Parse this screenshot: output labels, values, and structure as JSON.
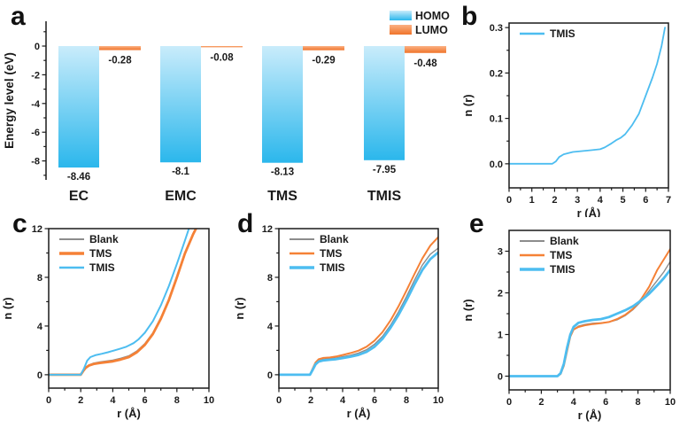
{
  "figure": {
    "background": "#ffffff",
    "panels": [
      {
        "letter": "a"
      },
      {
        "letter": "b"
      },
      {
        "letter": "c"
      },
      {
        "letter": "d"
      },
      {
        "letter": "e"
      }
    ]
  },
  "colors": {
    "text": "#1a1a1a",
    "axis": "#1a1a1a",
    "homo_gradient_top": "#c9ecfb",
    "homo_gradient_bottom": "#2bb7ec",
    "lumo_gradient_top": "#fbb183",
    "lumo_gradient_bottom": "#f0742a",
    "line_blank": "#8c8c8c",
    "line_tms": "#f58136",
    "line_tmis": "#4dbdf0"
  },
  "chart_data": [
    {
      "id": "panel-a",
      "type": "bar",
      "title": "",
      "ylabel": "Energy level (eV)",
      "ylim": [
        -9.3,
        1.4
      ],
      "yticks": [
        0,
        -2,
        -4,
        -6,
        -8
      ],
      "ytick_labels": [
        "0",
        "-2",
        "-4",
        "-6",
        "-8"
      ],
      "categories": [
        "EC",
        "EMC",
        "TMS",
        "TMIS"
      ],
      "series": [
        {
          "name": "HOMO",
          "color_top": "#c9ecfb",
          "color_bottom": "#2bb7ec",
          "values": [
            -8.46,
            -8.1,
            -8.13,
            -7.95
          ],
          "labels": [
            "-8.46",
            "-8.1",
            "-8.13",
            "-7.95"
          ]
        },
        {
          "name": "LUMO",
          "color_top": "#fbb183",
          "color_bottom": "#f0742a",
          "values": [
            -0.28,
            -0.08,
            -0.29,
            -0.48
          ],
          "labels": [
            "-0.28",
            "-0.08",
            "-0.29",
            "-0.48"
          ]
        }
      ],
      "legend": [
        "HOMO",
        "LUMO"
      ],
      "legend_position": "top-right"
    },
    {
      "id": "panel-b",
      "type": "line",
      "xlabel": "r (Å)",
      "ylabel": "n (r)",
      "xlim": [
        0,
        7
      ],
      "ylim": [
        -0.053,
        0.31
      ],
      "xticks": [
        0,
        1,
        2,
        3,
        4,
        5,
        6,
        7
      ],
      "xtick_labels": [
        "0",
        "1",
        "2",
        "3",
        "4",
        "5",
        "6",
        "7"
      ],
      "yticks": [
        0.0,
        0.1,
        0.2,
        0.3
      ],
      "ytick_labels": [
        "0.0",
        "0.1",
        "0.2",
        "0.3"
      ],
      "legend_position": "top-left",
      "series": [
        {
          "name": "TMIS",
          "color": "#4dbdf0",
          "width": 1.8,
          "points": [
            [
              0,
              0
            ],
            [
              1.9,
              0
            ],
            [
              2.05,
              0.005
            ],
            [
              2.2,
              0.015
            ],
            [
              2.4,
              0.021
            ],
            [
              2.8,
              0.026
            ],
            [
              3.2,
              0.028
            ],
            [
              3.6,
              0.03
            ],
            [
              4.0,
              0.032
            ],
            [
              4.2,
              0.036
            ],
            [
              4.5,
              0.045
            ],
            [
              4.7,
              0.052
            ],
            [
              4.9,
              0.057
            ],
            [
              5.1,
              0.065
            ],
            [
              5.4,
              0.085
            ],
            [
              5.7,
              0.11
            ],
            [
              6.0,
              0.15
            ],
            [
              6.3,
              0.19
            ],
            [
              6.5,
              0.22
            ],
            [
              6.7,
              0.26
            ],
            [
              6.85,
              0.3
            ]
          ]
        }
      ]
    },
    {
      "id": "panel-c",
      "type": "line",
      "xlabel": "r (Å)",
      "ylabel": "n (r)",
      "xlim": [
        0,
        10
      ],
      "ylim": [
        -1.1,
        12
      ],
      "xticks": [
        0,
        2,
        4,
        6,
        8,
        10
      ],
      "xtick_labels": [
        "0",
        "2",
        "4",
        "6",
        "8",
        "10"
      ],
      "yticks": [
        0,
        4,
        8,
        12
      ],
      "ytick_labels": [
        "0",
        "4",
        "8",
        "12"
      ],
      "legend_position": "top-left",
      "series": [
        {
          "name": "Blank",
          "color": "#8c8c8c",
          "width": 1.4,
          "points": [
            [
              0,
              0
            ],
            [
              2.0,
              0
            ],
            [
              2.15,
              0.35
            ],
            [
              2.3,
              0.6
            ],
            [
              2.5,
              0.8
            ],
            [
              2.8,
              0.95
            ],
            [
              3.2,
              1.05
            ],
            [
              3.6,
              1.12
            ],
            [
              4.0,
              1.2
            ],
            [
              4.5,
              1.35
            ],
            [
              5.0,
              1.55
            ],
            [
              5.5,
              1.95
            ],
            [
              6.0,
              2.55
            ],
            [
              6.5,
              3.45
            ],
            [
              7.0,
              4.7
            ],
            [
              7.5,
              6.2
            ],
            [
              8.0,
              8.0
            ],
            [
              8.5,
              9.9
            ],
            [
              9.0,
              11.6
            ],
            [
              9.3,
              12.4
            ]
          ]
        },
        {
          "name": "TMS",
          "color": "#f58136",
          "width": 2.8,
          "points": [
            [
              0,
              0
            ],
            [
              2.0,
              0
            ],
            [
              2.15,
              0.3
            ],
            [
              2.3,
              0.55
            ],
            [
              2.5,
              0.75
            ],
            [
              2.8,
              0.88
            ],
            [
              3.2,
              0.97
            ],
            [
              3.6,
              1.03
            ],
            [
              4.0,
              1.1
            ],
            [
              4.5,
              1.25
            ],
            [
              5.0,
              1.45
            ],
            [
              5.5,
              1.85
            ],
            [
              6.0,
              2.45
            ],
            [
              6.5,
              3.35
            ],
            [
              7.0,
              4.6
            ],
            [
              7.5,
              6.15
            ],
            [
              8.0,
              8.0
            ],
            [
              8.5,
              9.95
            ],
            [
              9.0,
              11.5
            ],
            [
              9.35,
              12.4
            ]
          ]
        },
        {
          "name": "TMIS",
          "color": "#4dbdf0",
          "width": 2.0,
          "points": [
            [
              0,
              0
            ],
            [
              2.0,
              0
            ],
            [
              2.2,
              0.5
            ],
            [
              2.4,
              1.15
            ],
            [
              2.6,
              1.45
            ],
            [
              2.9,
              1.6
            ],
            [
              3.3,
              1.72
            ],
            [
              3.7,
              1.85
            ],
            [
              4.1,
              2.0
            ],
            [
              4.5,
              2.15
            ],
            [
              4.8,
              2.28
            ],
            [
              5.0,
              2.4
            ],
            [
              5.3,
              2.6
            ],
            [
              5.6,
              2.9
            ],
            [
              6.0,
              3.45
            ],
            [
              6.5,
              4.4
            ],
            [
              7.0,
              5.7
            ],
            [
              7.5,
              7.3
            ],
            [
              8.0,
              9.1
            ],
            [
              8.5,
              11.0
            ],
            [
              8.85,
              12.4
            ]
          ]
        }
      ]
    },
    {
      "id": "panel-d",
      "type": "line",
      "xlabel": "r (Å)",
      "ylabel": "n (r)",
      "xlim": [
        0,
        10
      ],
      "ylim": [
        -1.1,
        12
      ],
      "xticks": [
        0,
        2,
        4,
        6,
        8,
        10
      ],
      "xtick_labels": [
        "0",
        "2",
        "4",
        "6",
        "8",
        "10"
      ],
      "yticks": [
        0,
        4,
        8,
        12
      ],
      "ytick_labels": [
        "0",
        "4",
        "8",
        "12"
      ],
      "legend_position": "top-left",
      "series": [
        {
          "name": "Blank",
          "color": "#8c8c8c",
          "width": 1.4,
          "points": [
            [
              0,
              0
            ],
            [
              1.95,
              0
            ],
            [
              2.1,
              0.4
            ],
            [
              2.3,
              0.9
            ],
            [
              2.5,
              1.15
            ],
            [
              2.8,
              1.27
            ],
            [
              3.2,
              1.33
            ],
            [
              3.6,
              1.38
            ],
            [
              4.0,
              1.48
            ],
            [
              4.5,
              1.6
            ],
            [
              5.0,
              1.78
            ],
            [
              5.5,
              2.05
            ],
            [
              6.0,
              2.5
            ],
            [
              6.5,
              3.15
            ],
            [
              7.0,
              4.05
            ],
            [
              7.5,
              5.15
            ],
            [
              8.0,
              6.4
            ],
            [
              8.5,
              7.75
            ],
            [
              9.0,
              9.0
            ],
            [
              9.5,
              9.9
            ],
            [
              10,
              10.4
            ]
          ]
        },
        {
          "name": "TMS",
          "color": "#f58136",
          "width": 2.0,
          "points": [
            [
              0,
              0
            ],
            [
              1.95,
              0
            ],
            [
              2.1,
              0.45
            ],
            [
              2.3,
              1.0
            ],
            [
              2.5,
              1.28
            ],
            [
              2.8,
              1.38
            ],
            [
              3.2,
              1.42
            ],
            [
              3.6,
              1.5
            ],
            [
              4.0,
              1.62
            ],
            [
              4.5,
              1.78
            ],
            [
              5.0,
              1.98
            ],
            [
              5.5,
              2.3
            ],
            [
              6.0,
              2.8
            ],
            [
              6.5,
              3.5
            ],
            [
              7.0,
              4.45
            ],
            [
              7.5,
              5.6
            ],
            [
              8.0,
              6.9
            ],
            [
              8.5,
              8.25
            ],
            [
              9.0,
              9.55
            ],
            [
              9.5,
              10.6
            ],
            [
              10,
              11.3
            ]
          ]
        },
        {
          "name": "TMIS",
          "color": "#4dbdf0",
          "width": 2.8,
          "points": [
            [
              0,
              0
            ],
            [
              1.95,
              0
            ],
            [
              2.1,
              0.35
            ],
            [
              2.3,
              0.85
            ],
            [
              2.5,
              1.08
            ],
            [
              2.8,
              1.18
            ],
            [
              3.2,
              1.23
            ],
            [
              3.6,
              1.28
            ],
            [
              4.0,
              1.37
            ],
            [
              4.5,
              1.48
            ],
            [
              5.0,
              1.63
            ],
            [
              5.5,
              1.88
            ],
            [
              6.0,
              2.3
            ],
            [
              6.5,
              2.95
            ],
            [
              7.0,
              3.85
            ],
            [
              7.5,
              4.9
            ],
            [
              8.0,
              6.1
            ],
            [
              8.5,
              7.4
            ],
            [
              9.0,
              8.6
            ],
            [
              9.5,
              9.5
            ],
            [
              10,
              10.05
            ]
          ]
        }
      ]
    },
    {
      "id": "panel-e",
      "type": "line",
      "xlabel": "r (Å)",
      "ylabel": "n (r)",
      "xlim": [
        0,
        10
      ],
      "ylim": [
        -0.33,
        3.5
      ],
      "xticks": [
        0,
        2,
        4,
        6,
        8,
        10
      ],
      "xtick_labels": [
        "0",
        "2",
        "4",
        "6",
        "8",
        "10"
      ],
      "yticks": [
        0,
        1,
        2,
        3
      ],
      "ytick_labels": [
        "0",
        "1",
        "2",
        "3"
      ],
      "legend_position": "top-left",
      "series": [
        {
          "name": "Blank",
          "color": "#8c8c8c",
          "width": 1.4,
          "points": [
            [
              0,
              0
            ],
            [
              3.0,
              0
            ],
            [
              3.2,
              0.05
            ],
            [
              3.4,
              0.25
            ],
            [
              3.6,
              0.6
            ],
            [
              3.8,
              0.95
            ],
            [
              4.0,
              1.12
            ],
            [
              4.3,
              1.2
            ],
            [
              4.7,
              1.24
            ],
            [
              5.2,
              1.27
            ],
            [
              5.7,
              1.28
            ],
            [
              6.2,
              1.3
            ],
            [
              6.7,
              1.35
            ],
            [
              7.2,
              1.45
            ],
            [
              7.7,
              1.6
            ],
            [
              8.2,
              1.8
            ],
            [
              8.7,
              2.05
            ],
            [
              9.2,
              2.3
            ],
            [
              9.6,
              2.5
            ],
            [
              10,
              2.75
            ]
          ]
        },
        {
          "name": "TMS",
          "color": "#f58136",
          "width": 2.0,
          "points": [
            [
              0,
              0
            ],
            [
              3.0,
              0
            ],
            [
              3.2,
              0.05
            ],
            [
              3.4,
              0.25
            ],
            [
              3.6,
              0.6
            ],
            [
              3.8,
              0.95
            ],
            [
              4.0,
              1.12
            ],
            [
              4.3,
              1.18
            ],
            [
              4.7,
              1.22
            ],
            [
              5.2,
              1.25
            ],
            [
              5.7,
              1.27
            ],
            [
              6.2,
              1.3
            ],
            [
              6.7,
              1.37
            ],
            [
              7.2,
              1.47
            ],
            [
              7.7,
              1.62
            ],
            [
              8.2,
              1.85
            ],
            [
              8.7,
              2.15
            ],
            [
              9.2,
              2.55
            ],
            [
              9.6,
              2.8
            ],
            [
              10,
              3.05
            ]
          ]
        },
        {
          "name": "TMIS",
          "color": "#4dbdf0",
          "width": 2.8,
          "points": [
            [
              0,
              0
            ],
            [
              3.0,
              0
            ],
            [
              3.2,
              0.07
            ],
            [
              3.4,
              0.3
            ],
            [
              3.6,
              0.68
            ],
            [
              3.8,
              1.0
            ],
            [
              4.0,
              1.18
            ],
            [
              4.3,
              1.28
            ],
            [
              4.7,
              1.32
            ],
            [
              5.2,
              1.35
            ],
            [
              5.7,
              1.37
            ],
            [
              6.2,
              1.42
            ],
            [
              6.7,
              1.5
            ],
            [
              7.2,
              1.58
            ],
            [
              7.7,
              1.68
            ],
            [
              8.2,
              1.82
            ],
            [
              8.7,
              1.98
            ],
            [
              9.2,
              2.18
            ],
            [
              9.6,
              2.35
            ],
            [
              10,
              2.55
            ]
          ]
        }
      ]
    }
  ]
}
